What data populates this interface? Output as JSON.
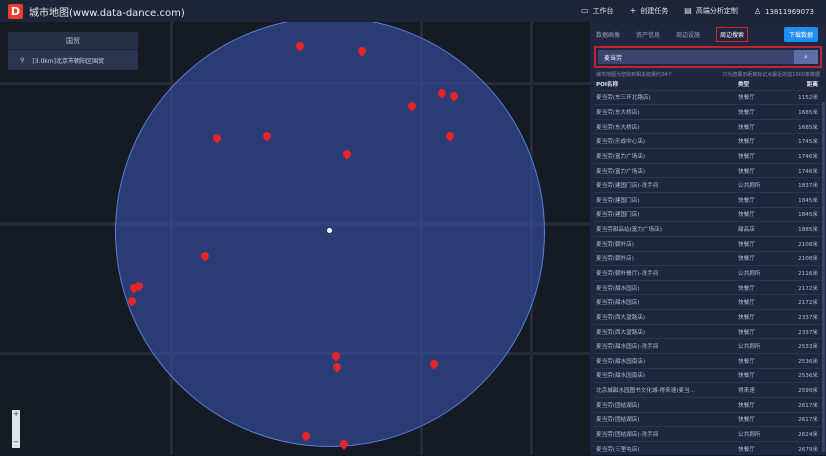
{
  "app": {
    "title": "城市地图(www.data-dance.com)",
    "logo": "D"
  },
  "topnav": [
    {
      "icon": "monitor-icon",
      "label": "工作台"
    },
    {
      "icon": "plus-icon",
      "label": "创建任务"
    },
    {
      "icon": "calendar-icon",
      "label": "高端分析定制"
    },
    {
      "icon": "user-icon",
      "label": "13811969073"
    }
  ],
  "left_panel": {
    "title": "国贸",
    "item": "[3.0km]北京市朝阳区国贸"
  },
  "map": {
    "circle_color": "#344ea0",
    "pin_color": "#e5252a",
    "zoom_in": "+",
    "zoom_out": "−"
  },
  "side": {
    "tabs": [
      "数据画像",
      "资产信息",
      "周边设施",
      "周边搜索"
    ],
    "active_tab": "周边搜索",
    "download": "下载数据",
    "search_value": "麦当劳",
    "info_left": "城市地图为您找到相关结果约34个",
    "info_right": "只为您展示距离标记点最近的前1000条数据",
    "columns": [
      "POI名称",
      "类型",
      "距离"
    ],
    "rows": [
      [
        "麦当劳(东三环北路店)",
        "快餐厅",
        "1152米"
      ],
      [
        "麦当劳(东大桥店)",
        "快餐厅",
        "1685米"
      ],
      [
        "麦当劳(东大桥店)",
        "快餐厅",
        "1685米"
      ],
      [
        "麦当劳(乐成中心店)",
        "快餐厅",
        "1745米"
      ],
      [
        "麦当劳(富力广场店)",
        "快餐厅",
        "1746米"
      ],
      [
        "麦当劳(富力广场店)",
        "快餐厅",
        "1746米"
      ],
      [
        "麦当劳(建国门店)-洗手间",
        "公共厕所",
        "1837米"
      ],
      [
        "麦当劳(建国门店)",
        "快餐厅",
        "1845米"
      ],
      [
        "麦当劳(建国门店)",
        "快餐厅",
        "1845米"
      ],
      [
        "麦当劳甜品站(富力广场店)",
        "甜品店",
        "1885米"
      ],
      [
        "麦当劳(朝外店)",
        "快餐厅",
        "2108米"
      ],
      [
        "麦当劳(朝外店)",
        "快餐厅",
        "2108米"
      ],
      [
        "麦当劳(朝外餐厅)-洗手间",
        "公共厕所",
        "2116米"
      ],
      [
        "麦当劳(甜水园店)",
        "快餐厅",
        "2172米"
      ],
      [
        "麦当劳(甜水园店)",
        "快餐厅",
        "2172米"
      ],
      [
        "麦当劳(西大望路店)",
        "快餐厅",
        "2337米"
      ],
      [
        "麦当劳(西大望路店)",
        "快餐厅",
        "2337米"
      ],
      [
        "麦当劳(甜水园店)-洗手间",
        "公共厕所",
        "2533米"
      ],
      [
        "麦当劳(甜水园南店)",
        "快餐厅",
        "2536米"
      ],
      [
        "麦当劳(甜水园南店)",
        "快餐厅",
        "2536米"
      ],
      [
        "北京城甜水园图书文化城-得来速(麦当...",
        "得来速",
        "2599米"
      ],
      [
        "麦当劳(团结湖店)",
        "快餐厅",
        "2617米"
      ],
      [
        "麦当劳(团结湖店)",
        "快餐厅",
        "2617米"
      ],
      [
        "麦当劳(团结湖店)-洗手间",
        "公共厕所",
        "2624米"
      ],
      [
        "麦当劳(三里屯店)",
        "快餐厅",
        "2679米"
      ]
    ]
  }
}
